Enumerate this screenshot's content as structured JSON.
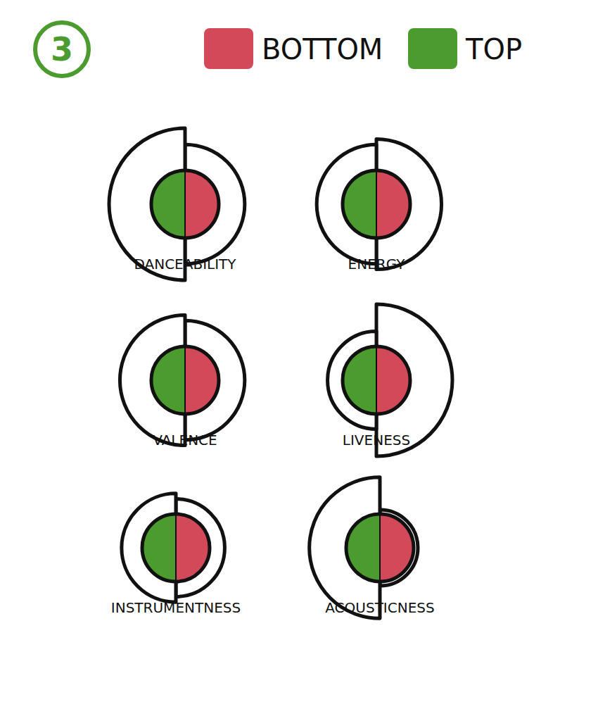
{
  "chart_data": {
    "type": "split_circle",
    "title": "3",
    "categories": [
      "DANCEABILITY",
      "ENERGY",
      "VALENCE",
      "LIVENESS",
      "INSTRUMENTNESS",
      "ACOUSTICNESS"
    ],
    "series": [
      {
        "name": "BOTTOM",
        "color": "#d2495a",
        "values": [
          0.55,
          0.6,
          0.55,
          0.7,
          0.45,
          0.35
        ]
      },
      {
        "name": "TOP",
        "color": "#4c9b2f",
        "values": [
          0.7,
          0.55,
          0.6,
          0.45,
          0.5,
          0.65
        ]
      }
    ],
    "legend": "top"
  }
}
